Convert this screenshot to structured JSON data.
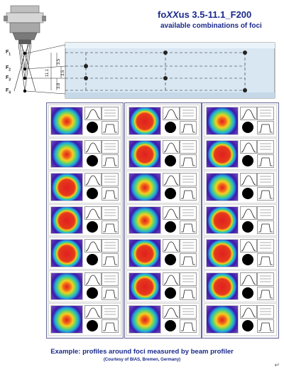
{
  "header": {
    "title_prefix": "fo",
    "title_xx": "XX",
    "title_suffix": "us 3.5-11.1_F200",
    "subtitle": "available combinations of foci"
  },
  "foci": {
    "labels": [
      "F",
      "F",
      "F",
      "F"
    ],
    "subscripts": [
      "1",
      "2",
      "3",
      "4"
    ],
    "dimensions": [
      "3.5",
      "3.5",
      "3.8",
      "11.1"
    ]
  },
  "beam_profiles": {
    "columns": 3,
    "rows": 7,
    "cells": [
      [
        "yellow-spot",
        "red-flat",
        "yellow-spot"
      ],
      [
        "yellow-spot",
        "red-flat",
        "red-flat"
      ],
      [
        "red-flat",
        "yellow-spot",
        "yellow-spot"
      ],
      [
        "red-flat",
        "yellow-spot",
        "red-flat"
      ],
      [
        "red-flat",
        "red-flat",
        "red-flat"
      ],
      [
        "yellow-spot",
        "red-flat",
        "red-flat"
      ],
      [
        "yellow-spot",
        "yellow-spot",
        "yellow-spot"
      ]
    ]
  },
  "caption": "Example: profiles around foci measured by beam profiler",
  "credit": "(Courtesy of BIAS, Bremen, Germany)",
  "return_mark": "↵",
  "colors": {
    "title": "#1a2a8c",
    "beam_outer": "#3d1aa8",
    "beam_hot": "#e02020",
    "beam_warm": "#f5d020"
  }
}
